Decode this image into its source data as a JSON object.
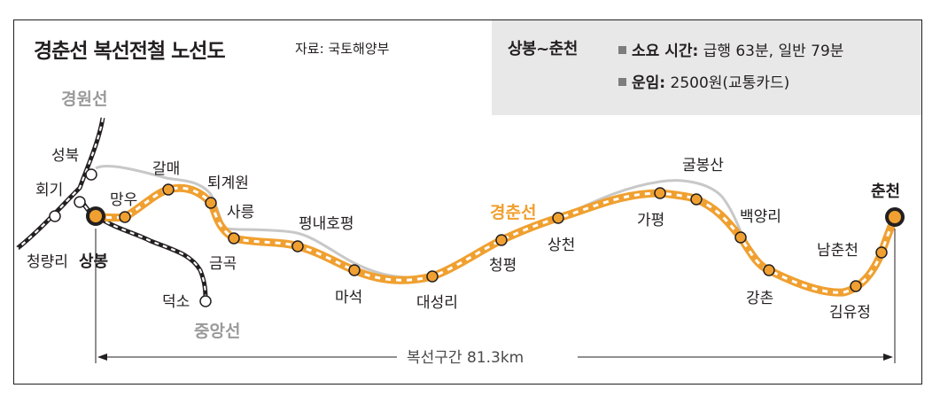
{
  "title": "경춘선 복선전철 노선도",
  "source": "자료: 국토해양부",
  "info": {
    "route": "상봉~춘천",
    "time_label": "소요 시간:",
    "time_value": "급행 63분, 일반 79분",
    "fare_label": "운임:",
    "fare_value": "2500원(교통카드)"
  },
  "lines": {
    "gyeongwon": "경원선",
    "jungang": "중앙선",
    "gyeongchun": "경춘선"
  },
  "stations": {
    "seongbuk": "성북",
    "hoegi": "회기",
    "cheongnyangni": "청량리",
    "sangbong": "상봉",
    "mangu": "망우",
    "galmae": "갈매",
    "toegyewon": "퇴계원",
    "sareung": "사릉",
    "geumgok": "금곡",
    "pyeongnaehopyeong": "평내호평",
    "maseok": "마석",
    "daeseongni": "대성리",
    "cheongpyeong": "청평",
    "sangcheon": "상천",
    "gapyeong": "가평",
    "gulbongsan": "굴봉산",
    "baegyangni": "백양리",
    "gangchon": "강촌",
    "gimyujeong": "김유정",
    "namchuncheon": "남춘천",
    "chuncheon": "춘천",
    "deokso": "덕소"
  },
  "distance": "복선구간 81.3km"
}
